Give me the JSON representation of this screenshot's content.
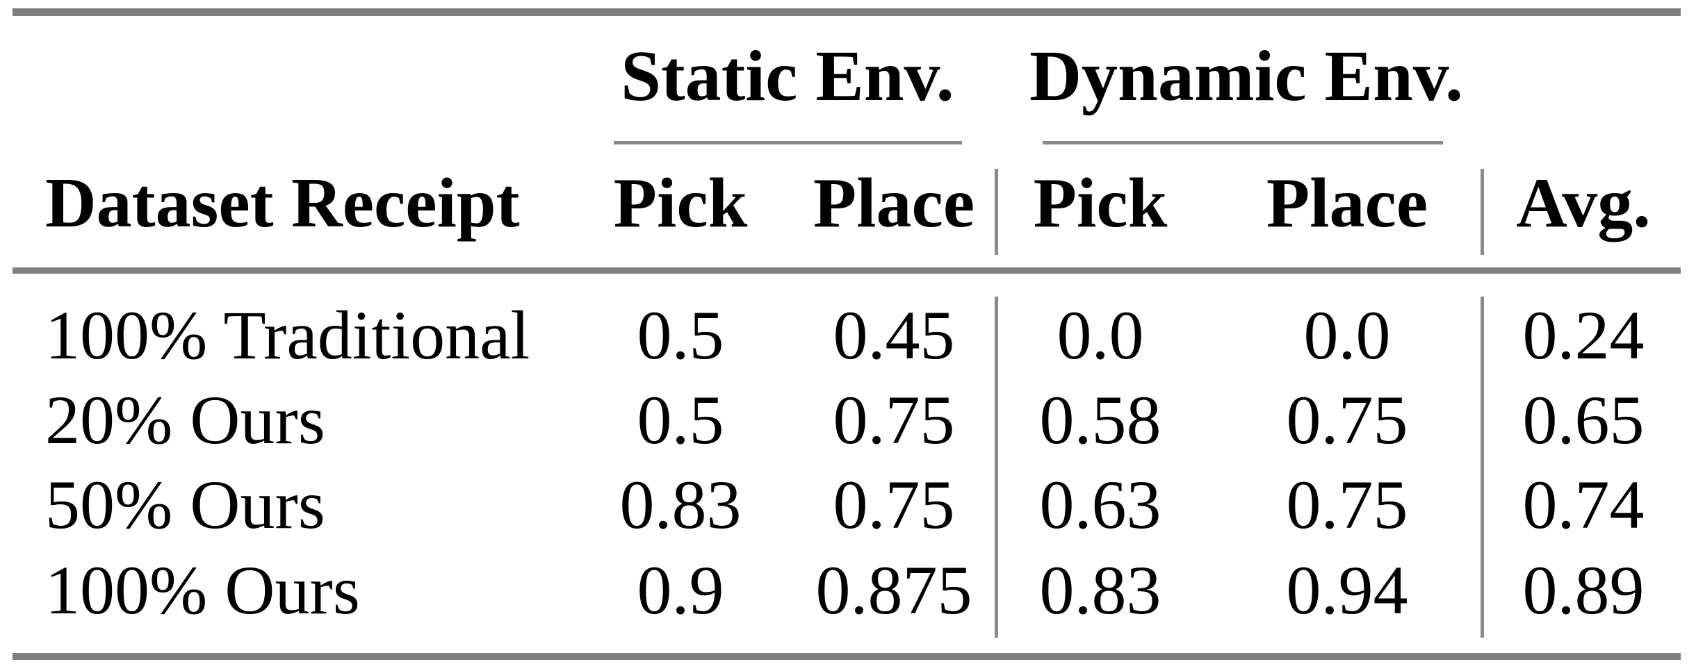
{
  "colors": {
    "background": "#ffffff",
    "text": "#000000",
    "thick_rule_gray": "#7f7f7f",
    "thin_rule_gray": "#8a8a8a"
  },
  "table": {
    "row_header_label": "Dataset Receipt",
    "groups": [
      {
        "label": "Static Env.",
        "columns": [
          "Pick",
          "Place"
        ]
      },
      {
        "label": "Dynamic Env.",
        "columns": [
          "Pick",
          "Place"
        ]
      }
    ],
    "avg_label": "Avg.",
    "rows": [
      {
        "label": "100% Traditional",
        "values": [
          "0.5",
          "0.45",
          "0.0",
          "0.0",
          "0.24"
        ]
      },
      {
        "label": "20% Ours",
        "values": [
          "0.5",
          "0.75",
          "0.58",
          "0.75",
          "0.65"
        ]
      },
      {
        "label": "50% Ours",
        "values": [
          "0.83",
          "0.75",
          "0.63",
          "0.75",
          "0.74"
        ]
      },
      {
        "label": "100% Ours",
        "values": [
          "0.9",
          "0.875",
          "0.83",
          "0.94",
          "0.89"
        ]
      }
    ]
  },
  "chart_data": {
    "type": "table",
    "title": "",
    "row_header": "Dataset Receipt",
    "column_groups": [
      "Static Env.",
      "Static Env.",
      "Dynamic Env.",
      "Dynamic Env.",
      ""
    ],
    "columns": [
      "Pick",
      "Place",
      "Pick",
      "Place",
      "Avg."
    ],
    "rows": [
      "100% Traditional",
      "20% Ours",
      "50% Ours",
      "100% Ours"
    ],
    "values": [
      [
        0.5,
        0.45,
        0.0,
        0.0,
        0.24
      ],
      [
        0.5,
        0.75,
        0.58,
        0.75,
        0.65
      ],
      [
        0.83,
        0.75,
        0.63,
        0.75,
        0.74
      ],
      [
        0.9,
        0.875,
        0.83,
        0.94,
        0.89
      ]
    ]
  }
}
